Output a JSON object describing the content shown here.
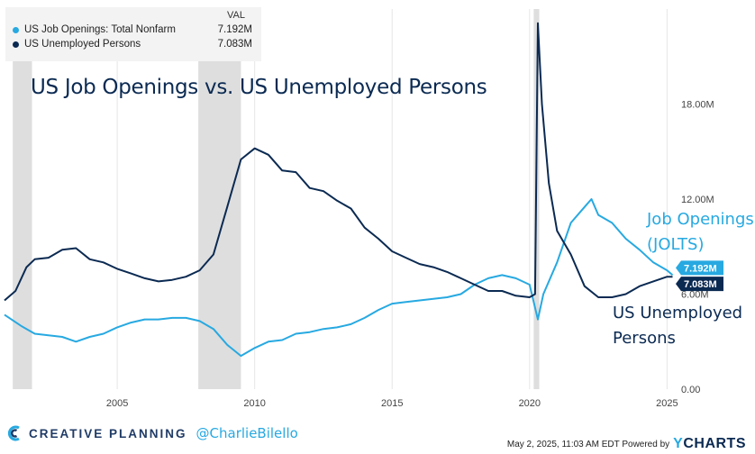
{
  "legend": {
    "header": "VAL",
    "items": [
      {
        "label": "US Job Openings: Total Nonfarm",
        "value": "7.192M",
        "color": "#27a9e1"
      },
      {
        "label": "US Unemployed Persons",
        "value": "7.083M",
        "color": "#0b2a52"
      }
    ]
  },
  "title": "US Job Openings vs. US Unemployed Persons",
  "annotations": {
    "jolts_line1": "Job Openings",
    "jolts_line2": "(JOLTS)",
    "unemp_line1": "US Unemployed",
    "unemp_line2": "Persons"
  },
  "footer": {
    "brand": "CREATIVE PLANNING",
    "handle": "@CharlieBilello",
    "timestamp": "May 2, 2025, 11:03 AM EDT Powered by",
    "ycharts": "YCHARTS"
  },
  "colors": {
    "jolts": "#27a9e1",
    "unemployed": "#0b2a52",
    "recession": "#dedede"
  },
  "chart_data": {
    "type": "line",
    "title": "US Job Openings vs. US Unemployed Persons",
    "xlim": [
      2000.9,
      2025.25
    ],
    "ylim": [
      0,
      24
    ],
    "x_ticks": [
      2005,
      2010,
      2015,
      2020,
      2025
    ],
    "x_tick_labels": [
      "2005",
      "2010",
      "2015",
      "2020",
      "2025"
    ],
    "y_ticks": [
      0,
      6,
      12,
      18
    ],
    "y_tick_labels": [
      "0.00",
      "6.00M",
      "12.00M",
      "18.00M"
    ],
    "grid": "vertical",
    "recessions": [
      [
        2001.2,
        2001.9
      ],
      [
        2007.95,
        2009.5
      ],
      [
        2020.15,
        2020.35
      ]
    ],
    "end_labels": [
      "7.192M",
      "7.083M"
    ],
    "series": [
      {
        "name": "US Job Openings: Total Nonfarm",
        "x": [
          2000.9,
          2001.5,
          2002,
          2002.5,
          2003,
          2003.5,
          2004,
          2004.5,
          2005,
          2005.5,
          2006,
          2006.5,
          2007,
          2007.5,
          2008,
          2008.5,
          2009,
          2009.5,
          2010,
          2010.5,
          2011,
          2011.5,
          2012,
          2012.5,
          2013,
          2013.5,
          2014,
          2014.5,
          2015,
          2015.5,
          2016,
          2016.5,
          2017,
          2017.5,
          2018,
          2018.5,
          2019,
          2019.5,
          2020.0,
          2020.3,
          2020.5,
          2021.0,
          2021.5,
          2022.0,
          2022.25,
          2022.5,
          2023.0,
          2023.5,
          2024.0,
          2024.5,
          2025.0,
          2025.2
        ],
        "values": [
          4.7,
          4.0,
          3.5,
          3.4,
          3.3,
          3.0,
          3.3,
          3.5,
          3.9,
          4.2,
          4.4,
          4.4,
          4.5,
          4.5,
          4.3,
          3.8,
          2.8,
          2.1,
          2.6,
          3.0,
          3.1,
          3.5,
          3.6,
          3.8,
          3.9,
          4.1,
          4.5,
          5.0,
          5.4,
          5.5,
          5.6,
          5.7,
          5.8,
          6.0,
          6.6,
          7.0,
          7.2,
          7.0,
          6.6,
          4.4,
          6.0,
          8.0,
          10.5,
          11.5,
          12.0,
          11.0,
          10.5,
          9.5,
          8.8,
          8.0,
          7.5,
          7.2
        ]
      },
      {
        "name": "US Unemployed Persons",
        "x": [
          2000.9,
          2001.3,
          2001.7,
          2002.0,
          2002.5,
          2003.0,
          2003.5,
          2004.0,
          2004.5,
          2005.0,
          2005.5,
          2006.0,
          2006.5,
          2007.0,
          2007.5,
          2008.0,
          2008.5,
          2009.0,
          2009.5,
          2010.0,
          2010.5,
          2011.0,
          2011.5,
          2012.0,
          2012.5,
          2013.0,
          2013.5,
          2014.0,
          2014.5,
          2015.0,
          2015.5,
          2016.0,
          2016.5,
          2017.0,
          2017.5,
          2018.0,
          2018.5,
          2019.0,
          2019.5,
          2020.0,
          2020.2,
          2020.3,
          2020.45,
          2020.7,
          2021.0,
          2021.5,
          2022.0,
          2022.5,
          2023.0,
          2023.5,
          2024.0,
          2024.5,
          2025.0,
          2025.2
        ],
        "values": [
          5.6,
          6.2,
          7.7,
          8.2,
          8.3,
          8.8,
          8.9,
          8.2,
          8.0,
          7.6,
          7.3,
          7.0,
          6.8,
          6.9,
          7.1,
          7.5,
          8.5,
          11.5,
          14.5,
          15.2,
          14.8,
          13.8,
          13.7,
          12.7,
          12.5,
          11.9,
          11.4,
          10.2,
          9.5,
          8.7,
          8.3,
          7.9,
          7.7,
          7.4,
          7.0,
          6.6,
          6.2,
          6.2,
          5.9,
          5.8,
          6.0,
          23.1,
          18.0,
          13.0,
          10.0,
          8.5,
          6.5,
          5.8,
          5.8,
          6.0,
          6.5,
          6.8,
          7.1,
          7.1
        ]
      }
    ]
  }
}
